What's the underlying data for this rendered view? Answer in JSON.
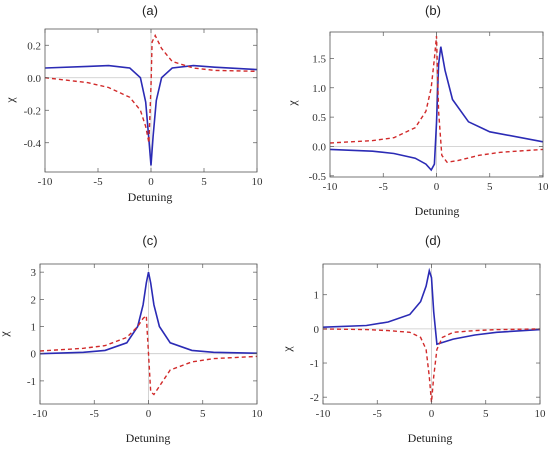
{
  "colors": {
    "solid_series": "#2b2bb5",
    "dashed_series": "#d12a2a",
    "zero_line": "#c8c8c8"
  },
  "chart_data": [
    {
      "panel_label": "(a)",
      "type": "line",
      "xlabel": "Detuning",
      "ylabel": "χ",
      "xlim": [
        -10,
        10
      ],
      "ylim": [
        -0.58,
        0.3
      ],
      "xticks": [
        -10,
        -5,
        0,
        5,
        10
      ],
      "yticks": [
        -0.4,
        -0.2,
        0.0,
        0.2
      ],
      "ytick_labels": [
        "-0.4",
        "-0.2",
        "0.0",
        "0.2"
      ],
      "grid": false,
      "series": [
        {
          "style": "solid",
          "color": "#2b2bb5",
          "x": [
            -10,
            -6,
            -4,
            -2,
            -1,
            -0.5,
            -0.2,
            0,
            0.2,
            0.5,
            1,
            2,
            4,
            6,
            10
          ],
          "y": [
            0.06,
            0.07,
            0.075,
            0.06,
            0.0,
            -0.15,
            -0.38,
            -0.54,
            -0.36,
            -0.14,
            0.0,
            0.06,
            0.075,
            0.065,
            0.05
          ]
        },
        {
          "style": "dashed",
          "color": "#d12a2a",
          "x": [
            -10,
            -6,
            -4,
            -2,
            -1,
            -0.5,
            -0.2,
            0,
            0.1,
            0.4,
            1,
            2,
            4,
            6,
            10
          ],
          "y": [
            0.0,
            -0.03,
            -0.06,
            -0.12,
            -0.2,
            -0.3,
            -0.4,
            -0.05,
            0.22,
            0.26,
            0.18,
            0.1,
            0.06,
            0.045,
            0.04
          ]
        }
      ]
    },
    {
      "panel_label": "(b)",
      "type": "line",
      "xlabel": "Detuning",
      "ylabel": "χ",
      "xlim": [
        -10,
        10
      ],
      "ylim": [
        -0.52,
        1.95
      ],
      "xticks": [
        -10,
        -5,
        0,
        5,
        10
      ],
      "yticks": [
        -0.5,
        0.0,
        0.5,
        1.0,
        1.5
      ],
      "ytick_labels": [
        "-0.5",
        "0.0",
        "0.5",
        "1.0",
        "1.5"
      ],
      "grid": false,
      "series": [
        {
          "style": "solid",
          "color": "#2b2bb5",
          "x": [
            -10,
            -6,
            -4,
            -2,
            -1,
            -0.5,
            -0.2,
            0,
            0.2,
            0.4,
            0.8,
            1.5,
            3,
            5,
            10
          ],
          "y": [
            -0.05,
            -0.08,
            -0.12,
            -0.2,
            -0.3,
            -0.4,
            -0.3,
            0.4,
            1.4,
            1.7,
            1.3,
            0.8,
            0.42,
            0.25,
            0.08
          ]
        },
        {
          "style": "dashed",
          "color": "#d12a2a",
          "x": [
            -10,
            -6,
            -4,
            -2,
            -1,
            -0.5,
            -0.2,
            0,
            0.2,
            0.5,
            1,
            2,
            4,
            6,
            10
          ],
          "y": [
            0.06,
            0.1,
            0.15,
            0.32,
            0.6,
            1.0,
            1.5,
            1.88,
            0.6,
            -0.15,
            -0.27,
            -0.24,
            -0.15,
            -0.1,
            -0.05
          ]
        }
      ]
    },
    {
      "panel_label": "(c)",
      "type": "line",
      "xlabel": "Detuning",
      "ylabel": "χ",
      "xlim": [
        -10,
        10
      ],
      "ylim": [
        -1.85,
        3.3
      ],
      "xticks": [
        -10,
        -5,
        0,
        5,
        10
      ],
      "yticks": [
        -1,
        0,
        1,
        2,
        3
      ],
      "ytick_labels": [
        "-1",
        "0",
        "1",
        "2",
        "3"
      ],
      "grid": false,
      "series": [
        {
          "style": "solid",
          "color": "#2b2bb5",
          "x": [
            -10,
            -6,
            -4,
            -2,
            -1,
            -0.5,
            -0.2,
            0,
            0.2,
            0.5,
            1,
            2,
            4,
            6,
            10
          ],
          "y": [
            0.0,
            0.05,
            0.12,
            0.4,
            1.0,
            1.8,
            2.6,
            3.0,
            2.6,
            1.8,
            1.0,
            0.4,
            0.12,
            0.05,
            0.02
          ]
        },
        {
          "style": "dashed",
          "color": "#d12a2a",
          "x": [
            -10,
            -6,
            -4,
            -2,
            -1,
            -0.5,
            -0.2,
            0,
            0.2,
            0.5,
            1,
            2,
            4,
            6,
            10
          ],
          "y": [
            0.1,
            0.2,
            0.3,
            0.6,
            1.0,
            1.3,
            1.4,
            0.0,
            -1.4,
            -1.5,
            -1.2,
            -0.6,
            -0.3,
            -0.18,
            -0.1
          ]
        }
      ]
    },
    {
      "panel_label": "(d)",
      "type": "line",
      "xlabel": "Detuning",
      "ylabel": "χ",
      "xlim": [
        -10,
        10
      ],
      "ylim": [
        -2.2,
        1.9
      ],
      "xticks": [
        -10,
        -5,
        0,
        5,
        10
      ],
      "yticks": [
        -2,
        -1,
        0,
        1
      ],
      "ytick_labels": [
        "-2",
        "-1",
        "0",
        "1"
      ],
      "grid": false,
      "series": [
        {
          "style": "solid",
          "color": "#2b2bb5",
          "x": [
            -10,
            -6,
            -4,
            -2,
            -1,
            -0.5,
            -0.2,
            0,
            0.2,
            0.5,
            1,
            2,
            4,
            6,
            10
          ],
          "y": [
            0.05,
            0.1,
            0.2,
            0.42,
            0.8,
            1.25,
            1.7,
            1.5,
            0.5,
            -0.45,
            -0.4,
            -0.3,
            -0.18,
            -0.1,
            -0.02
          ]
        },
        {
          "style": "dashed",
          "color": "#d12a2a",
          "x": [
            -10,
            -6,
            -4,
            -2,
            -1,
            -0.5,
            -0.2,
            0,
            0.2,
            0.5,
            1,
            2,
            4,
            6,
            10
          ],
          "y": [
            0.0,
            -0.02,
            -0.05,
            -0.1,
            -0.25,
            -0.6,
            -1.4,
            -2.15,
            -1.4,
            -0.6,
            -0.25,
            -0.1,
            -0.05,
            -0.02,
            0.0
          ]
        }
      ]
    }
  ]
}
